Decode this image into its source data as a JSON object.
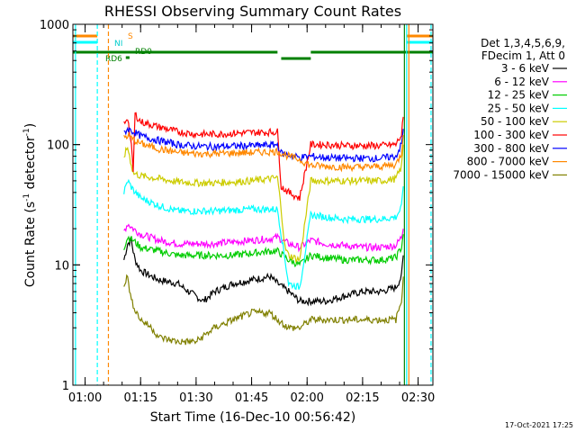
{
  "chart_data": {
    "type": "line",
    "title": "RHESSI Observing Summary Count Rates",
    "xlabel": "Start Time (16-Dec-10 00:56:42)",
    "ylabel_main": "Count Rate (s",
    "ylabel_sup1": "-1",
    "ylabel_mid": " detector",
    "ylabel_sup2": "-1",
    "ylabel_end": ")",
    "yscale": "log",
    "ylim": [
      1,
      1000
    ],
    "xlim_minutes": [
      56.7,
      154.0
    ],
    "y_ticks": [
      1,
      10,
      100,
      1000
    ],
    "y_tick_labels": [
      "1",
      "10",
      "100",
      "1000"
    ],
    "x_ticks": [
      60,
      75,
      90,
      105,
      120,
      135,
      150
    ],
    "x_tick_labels": [
      "01:00",
      "01:15",
      "01:30",
      "01:45",
      "02:00",
      "02:15",
      "02:30"
    ],
    "legend_header": [
      "Det 1,3,4,5,6,9,",
      "FDecim 1, Att 0"
    ],
    "footer": "17-Oct-2021 17:25",
    "flag_labels": [
      "S",
      "NI",
      "RD0",
      "RD6"
    ],
    "series": [
      {
        "name": "3 - 6 keV",
        "color": "#000000",
        "points": [
          [
            70.5,
            11
          ],
          [
            71.5,
            15
          ],
          [
            72.5,
            16
          ],
          [
            73,
            13
          ],
          [
            73.5,
            11
          ],
          [
            75,
            9
          ],
          [
            78,
            8
          ],
          [
            80,
            7.5
          ],
          [
            85,
            7
          ],
          [
            88,
            6
          ],
          [
            92,
            5
          ],
          [
            95,
            6
          ],
          [
            100,
            7
          ],
          [
            105,
            7.5
          ],
          [
            110,
            8
          ],
          [
            112,
            7
          ],
          [
            115,
            6
          ],
          [
            118,
            5
          ],
          [
            121,
            5
          ],
          [
            125,
            5
          ],
          [
            130,
            5.5
          ],
          [
            135,
            6
          ],
          [
            140,
            6
          ],
          [
            144,
            6.5
          ],
          [
            145.5,
            8
          ],
          [
            146,
            12
          ]
        ]
      },
      {
        "name": "6 - 12 keV",
        "color": "#ff00ff",
        "points": [
          [
            70.5,
            19
          ],
          [
            71.5,
            22
          ],
          [
            73,
            20
          ],
          [
            75,
            18
          ],
          [
            80,
            16
          ],
          [
            85,
            15
          ],
          [
            90,
            15
          ],
          [
            95,
            15
          ],
          [
            100,
            15.5
          ],
          [
            105,
            16
          ],
          [
            110,
            16.5
          ],
          [
            112,
            17
          ],
          [
            115,
            15
          ],
          [
            118,
            14
          ],
          [
            121,
            16
          ],
          [
            125,
            15
          ],
          [
            130,
            14.5
          ],
          [
            135,
            14
          ],
          [
            140,
            14
          ],
          [
            144,
            14.5
          ],
          [
            145.5,
            17
          ],
          [
            146,
            20
          ]
        ]
      },
      {
        "name": "12 - 25 keV",
        "color": "#00cc00",
        "points": [
          [
            70.5,
            14
          ],
          [
            71.5,
            17
          ],
          [
            73,
            16
          ],
          [
            75,
            14
          ],
          [
            80,
            13
          ],
          [
            85,
            12
          ],
          [
            90,
            12
          ],
          [
            95,
            12
          ],
          [
            100,
            12
          ],
          [
            105,
            12.5
          ],
          [
            110,
            13
          ],
          [
            112,
            13
          ],
          [
            115,
            11
          ],
          [
            118,
            10
          ],
          [
            121,
            12
          ],
          [
            125,
            11.5
          ],
          [
            130,
            11
          ],
          [
            135,
            11
          ],
          [
            140,
            11
          ],
          [
            144,
            11.5
          ],
          [
            145.5,
            14
          ],
          [
            146,
            18
          ]
        ]
      },
      {
        "name": "25 - 50 keV",
        "color": "#00ffff",
        "points": [
          [
            70.5,
            40
          ],
          [
            71.5,
            50
          ],
          [
            73,
            42
          ],
          [
            75,
            36
          ],
          [
            80,
            31
          ],
          [
            85,
            28
          ],
          [
            90,
            28
          ],
          [
            95,
            28
          ],
          [
            100,
            28.5
          ],
          [
            105,
            29
          ],
          [
            110,
            29
          ],
          [
            112,
            29
          ],
          [
            115,
            7
          ],
          [
            118,
            6.5
          ],
          [
            121,
            26
          ],
          [
            125,
            25
          ],
          [
            130,
            24
          ],
          [
            135,
            24
          ],
          [
            140,
            24
          ],
          [
            144,
            25
          ],
          [
            145.5,
            30
          ],
          [
            146,
            45
          ]
        ]
      },
      {
        "name": "50 - 100 keV",
        "color": "#cccc00",
        "points": [
          [
            70.5,
            80
          ],
          [
            71.5,
            95
          ],
          [
            73,
            58
          ],
          [
            75,
            55
          ],
          [
            80,
            52
          ],
          [
            85,
            49
          ],
          [
            90,
            48
          ],
          [
            95,
            48
          ],
          [
            100,
            49
          ],
          [
            105,
            50
          ],
          [
            110,
            52
          ],
          [
            112,
            53
          ],
          [
            113,
            29
          ],
          [
            114,
            14
          ],
          [
            115,
            12
          ],
          [
            118,
            11
          ],
          [
            121,
            50
          ],
          [
            125,
            50
          ],
          [
            130,
            50
          ],
          [
            135,
            50
          ],
          [
            140,
            50
          ],
          [
            144,
            52
          ],
          [
            145.5,
            65
          ],
          [
            146,
            100
          ]
        ]
      },
      {
        "name": "100 - 300 keV",
        "color": "#ff0000",
        "points": [
          [
            70.5,
            150
          ],
          [
            71.5,
            170
          ],
          [
            72.5,
            95
          ],
          [
            73,
            60
          ],
          [
            73.5,
            180
          ],
          [
            75,
            155
          ],
          [
            80,
            140
          ],
          [
            85,
            128
          ],
          [
            90,
            122
          ],
          [
            95,
            122
          ],
          [
            100,
            124
          ],
          [
            105,
            126
          ],
          [
            110,
            127
          ],
          [
            112,
            128
          ],
          [
            113,
            45
          ],
          [
            115,
            40
          ],
          [
            118,
            36
          ],
          [
            121,
            100
          ],
          [
            125,
            100
          ],
          [
            130,
            98
          ],
          [
            135,
            98
          ],
          [
            140,
            98
          ],
          [
            144,
            100
          ],
          [
            145.5,
            120
          ],
          [
            146,
            170
          ]
        ]
      },
      {
        "name": "300 - 800 keV",
        "color": "#0000ff",
        "points": [
          [
            70.5,
            125
          ],
          [
            71.5,
            135
          ],
          [
            73,
            128
          ],
          [
            75,
            118
          ],
          [
            80,
            108
          ],
          [
            85,
            100
          ],
          [
            90,
            97
          ],
          [
            95,
            96
          ],
          [
            100,
            97
          ],
          [
            105,
            98
          ],
          [
            110,
            99
          ],
          [
            112,
            100
          ],
          [
            113,
            85
          ],
          [
            115,
            82
          ],
          [
            118,
            78
          ],
          [
            121,
            80
          ],
          [
            125,
            78
          ],
          [
            130,
            77
          ],
          [
            135,
            77
          ],
          [
            140,
            77
          ],
          [
            144,
            80
          ],
          [
            145.5,
            100
          ],
          [
            146,
            135
          ]
        ]
      },
      {
        "name": "800 - 7000 keV",
        "color": "#ff8800",
        "points": [
          [
            70.5,
            115
          ],
          [
            71.5,
            118
          ],
          [
            73,
            110
          ],
          [
            75,
            102
          ],
          [
            80,
            92
          ],
          [
            85,
            86
          ],
          [
            90,
            84
          ],
          [
            95,
            84
          ],
          [
            100,
            85
          ],
          [
            105,
            86
          ],
          [
            110,
            87
          ],
          [
            112,
            88
          ],
          [
            113,
            85
          ],
          [
            115,
            80
          ],
          [
            118,
            75
          ],
          [
            121,
            67
          ],
          [
            125,
            66
          ],
          [
            130,
            65
          ],
          [
            135,
            65
          ],
          [
            140,
            66
          ],
          [
            144,
            68
          ],
          [
            145.5,
            85
          ],
          [
            146,
            120
          ]
        ]
      },
      {
        "name": "7000 - 15000 keV",
        "color": "#808000",
        "points": [
          [
            70.5,
            7
          ],
          [
            71.5,
            8
          ],
          [
            72.5,
            5
          ],
          [
            74,
            4
          ],
          [
            75,
            3.5
          ],
          [
            78,
            3
          ],
          [
            80,
            2.5
          ],
          [
            85,
            2.3
          ],
          [
            90,
            2.3
          ],
          [
            95,
            3
          ],
          [
            100,
            3.5
          ],
          [
            105,
            4
          ],
          [
            110,
            4
          ],
          [
            112,
            3.5
          ],
          [
            115,
            3
          ],
          [
            118,
            3
          ],
          [
            121,
            3.5
          ],
          [
            125,
            3.5
          ],
          [
            130,
            3.5
          ],
          [
            135,
            3.5
          ],
          [
            140,
            3.5
          ],
          [
            144,
            3.5
          ],
          [
            145.5,
            5
          ],
          [
            146,
            8
          ]
        ]
      }
    ]
  }
}
